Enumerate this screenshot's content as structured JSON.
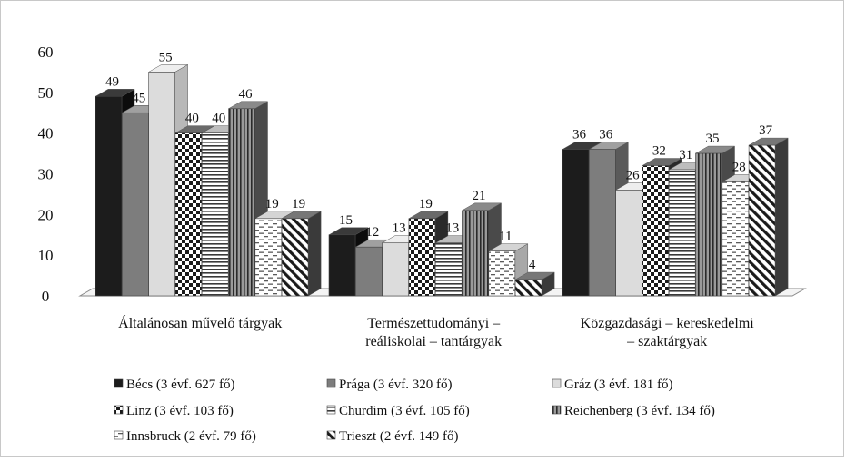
{
  "chart_data": {
    "type": "bar",
    "title": "",
    "xlabel": "",
    "ylabel": "",
    "ylim": [
      0,
      60
    ],
    "yticks": [
      "0",
      "10",
      "20",
      "30",
      "40",
      "50",
      "60"
    ],
    "categories": [
      [
        "Általánosan művelő tárgyak"
      ],
      [
        "Természettudományi –",
        "reáliskolai – tantárgyak"
      ],
      [
        "Közgazdasági – kereskedelmi",
        "– szaktárgyak"
      ]
    ],
    "series": [
      {
        "name": "Bécs (3 évf. 627 fő)",
        "values": [
          49,
          15,
          36
        ],
        "pattern": "black"
      },
      {
        "name": "Prága (3 évf. 320 fő)",
        "values": [
          45,
          12,
          36
        ],
        "pattern": "gray"
      },
      {
        "name": "Gráz (3 évf. 181 fő)",
        "values": [
          55,
          13,
          26
        ],
        "pattern": "light"
      },
      {
        "name": "Linz (3 évf. 103 fő)",
        "values": [
          40,
          19,
          32
        ],
        "pattern": "checker"
      },
      {
        "name": "Churdim (3 évf. 105 fő)",
        "values": [
          40,
          13,
          31
        ],
        "pattern": "hlines"
      },
      {
        "name": "Reichenberg (3 évf. 134 fő)",
        "values": [
          46,
          21,
          35
        ],
        "pattern": "vlines"
      },
      {
        "name": "Innsbruck (2 évf. 79 fő)",
        "values": [
          19,
          11,
          28
        ],
        "pattern": "dashes"
      },
      {
        "name": "Trieszt (2 évf. 149 fő)",
        "values": [
          19,
          4,
          37
        ],
        "pattern": "diag"
      }
    ],
    "grid": false,
    "legend_position": "bottom",
    "colors": {
      "black": "#1c1c1c",
      "gray": "#7d7d7d",
      "light": "#dcdcdc",
      "ink": "#222222"
    }
  }
}
